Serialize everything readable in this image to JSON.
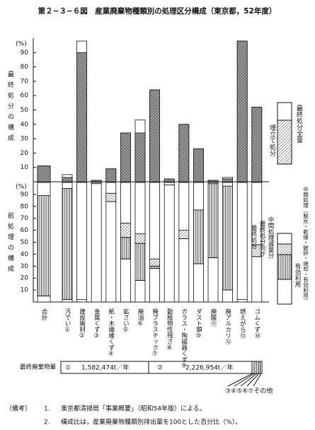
{
  "chart_data": [
    {
      "type": "bar",
      "stacked": false,
      "title": "第２−３−６図　産業廃棄物種類別の処理区分構成（東京都，52年度）",
      "y_label": "最終処分の構成",
      "y_unit": "(%)",
      "ylim": [
        0,
        100
      ],
      "yticks": [
        10,
        20,
        30,
        40,
        50,
        60,
        70,
        80,
        90
      ],
      "series": [
        {
          "name": "最終処分全量",
          "color": "#ffffff",
          "pattern": "none",
          "values": [
            11,
            5,
            98,
            1,
            9,
            34,
            43,
            64,
            2,
            40,
            23,
            1,
            3,
            98,
            52
          ]
        },
        {
          "name": "埋立て処分",
          "color": "#9a9a9a",
          "pattern": "diagonal",
          "values": [
            11,
            3,
            90,
            1,
            9,
            34,
            34,
            64,
            2,
            40,
            23,
            1,
            2,
            98,
            52
          ]
        }
      ]
    },
    {
      "type": "stacked_bar",
      "stacked": true,
      "y_label": "前処理の構成",
      "y_unit": "(%)",
      "ylim": [
        0,
        100
      ],
      "yticks": [
        10,
        20,
        30,
        40,
        50,
        60,
        70,
        80,
        90
      ],
      "categories": [
        "合計",
        "汚でい①",
        "建設廃材②",
        "金属くず③",
        "紙・木繊維くず④",
        "鉱さい⑤",
        "廃油⑥",
        "廃プラスチック⑦",
        "動植物性残さ⑧",
        "ガラス・陶磁器くず⑨",
        "ダスト類⑩",
        "廃酸⑪",
        "廃アルカリ⑫",
        "燃えがら⑬",
        "ゴムくず⑭"
      ],
      "bracket_label": "中間処理（脱水・乾燥・破砕・焼却・有効利用）",
      "series": [
        {
          "name": "有効利用",
          "color": "#ffffff",
          "pattern": "none",
          "values": [
            5,
            2,
            2,
            99,
            84,
            36,
            18,
            28,
            98,
            53,
            32,
            37,
            10,
            2,
            38
          ]
        },
        {
          "name": "中間処理減量分",
          "color": "#ffffff",
          "pattern": "vertical",
          "values": [
            84,
            93,
            0,
            0,
            0,
            18,
            31,
            2,
            0,
            0,
            45,
            62,
            87,
            0,
            0
          ]
        },
        {
          "name": "最終処分向け",
          "color": "#ffffff",
          "pattern": "diagonal",
          "values": [
            0,
            0,
            0,
            0,
            7,
            12,
            8,
            6,
            0,
            7,
            0,
            0,
            0,
            0,
            10
          ]
        },
        {
          "name": "最終処分",
          "color": "#ffffff",
          "pattern": "none",
          "values": [
            11,
            5,
            98,
            1,
            9,
            34,
            43,
            64,
            2,
            40,
            23,
            1,
            3,
            98,
            52
          ]
        }
      ]
    }
  ],
  "waste_row": {
    "label": "最終廃棄物量",
    "items": [
      "①",
      "1,582,474t／年",
      "②",
      "2,226,954t／年"
    ],
    "others": "③④⑤⑥⑦その他"
  },
  "notes": [
    {
      "marker": "（備考）",
      "number": "1.",
      "text": "東京都清掃局「事業概要」（昭和54年版）による。"
    },
    {
      "number": "2.",
      "text": "構成比は，産業廃棄物種類別排出量を100とした百分比（%）。"
    }
  ]
}
